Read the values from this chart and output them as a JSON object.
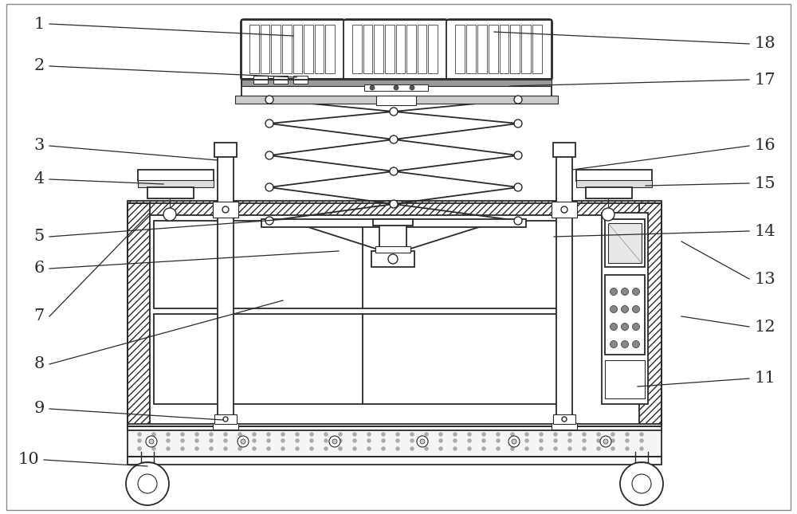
{
  "bg_color": "#ffffff",
  "line_color": "#2a2a2a",
  "label_color": "#2a2a2a",
  "figsize": [
    10.0,
    6.45
  ],
  "dpi": 100,
  "label_fontsize": 15
}
